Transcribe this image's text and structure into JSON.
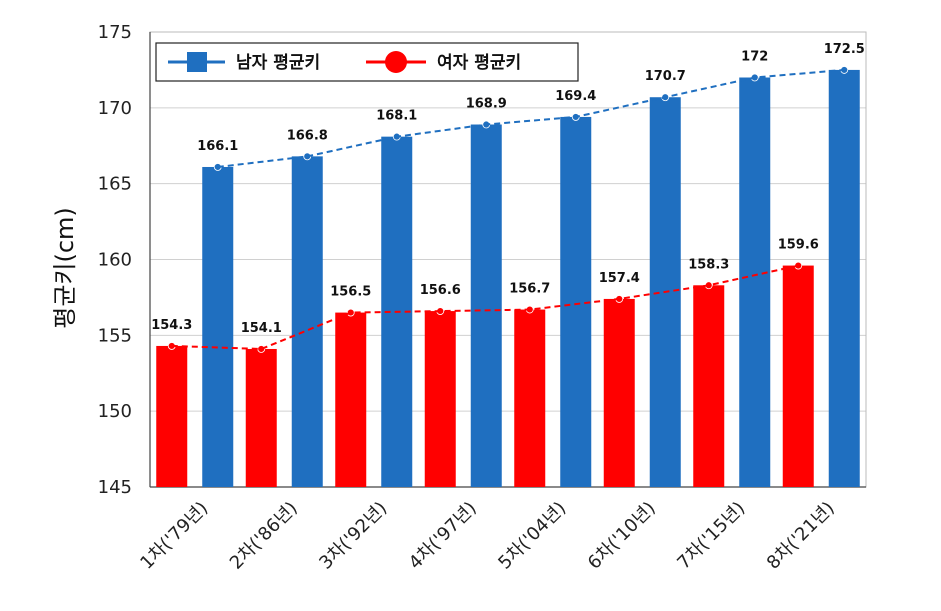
{
  "chart_data": {
    "type": "bar",
    "title": "",
    "xlabel": "",
    "ylabel": "평균키(cm)",
    "ylim": [
      145,
      175
    ],
    "yticks": [
      145,
      150,
      155,
      160,
      165,
      170,
      175
    ],
    "grid": true,
    "legend_position": "top-left",
    "categories": [
      "1차('79년)",
      "2차('86년)",
      "3차('92년)",
      "4차('97년)",
      "5차('04년)",
      "6차('10년)",
      "7차('15년)",
      "8차('21년)"
    ],
    "series": [
      {
        "name": "남자 평균키",
        "color": "#1f6fc0",
        "values": [
          166.1,
          166.8,
          168.1,
          168.9,
          169.4,
          170.7,
          172,
          172.5
        ],
        "labels": [
          "166.1",
          "166.8",
          "168.1",
          "168.9",
          "169.4",
          "170.7",
          "172",
          "172.5"
        ]
      },
      {
        "name": "여자 평균키",
        "color": "#ff0000",
        "values": [
          154.3,
          154.1,
          156.5,
          156.6,
          156.7,
          157.4,
          158.3,
          159.6
        ],
        "labels": [
          "154.3",
          "154.1",
          "156.5",
          "156.6",
          "156.7",
          "157.4",
          "158.3",
          "159.6"
        ]
      }
    ]
  }
}
